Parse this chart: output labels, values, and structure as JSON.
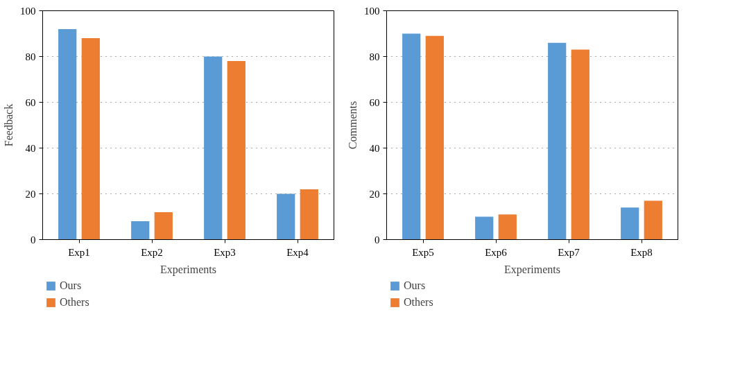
{
  "chart_data": [
    {
      "type": "bar",
      "xlabel": "Experiments",
      "ylabel": "Feedback",
      "categories": [
        "Exp1",
        "Exp2",
        "Exp3",
        "Exp4"
      ],
      "ylim": [
        0,
        100
      ],
      "yticks": [
        0,
        20,
        40,
        60,
        80,
        100
      ],
      "grid": "y",
      "legend": "bottom",
      "series": [
        {
          "name": "Ours",
          "color": "#5b9bd5",
          "values": [
            92,
            8,
            80,
            20
          ]
        },
        {
          "name": "Others",
          "color": "#ed7d31",
          "values": [
            88,
            12,
            78,
            22
          ]
        }
      ]
    },
    {
      "type": "bar",
      "xlabel": "Experiments",
      "ylabel": "Comments",
      "categories": [
        "Exp5",
        "Exp6",
        "Exp7",
        "Exp8"
      ],
      "ylim": [
        0,
        100
      ],
      "yticks": [
        0,
        20,
        40,
        60,
        80,
        100
      ],
      "grid": "y",
      "legend": "bottom",
      "series": [
        {
          "name": "Ours",
          "color": "#5b9bd5",
          "values": [
            90,
            10,
            86,
            14
          ]
        },
        {
          "name": "Others",
          "color": "#ed7d31",
          "values": [
            89,
            11,
            83,
            17
          ]
        }
      ]
    }
  ]
}
